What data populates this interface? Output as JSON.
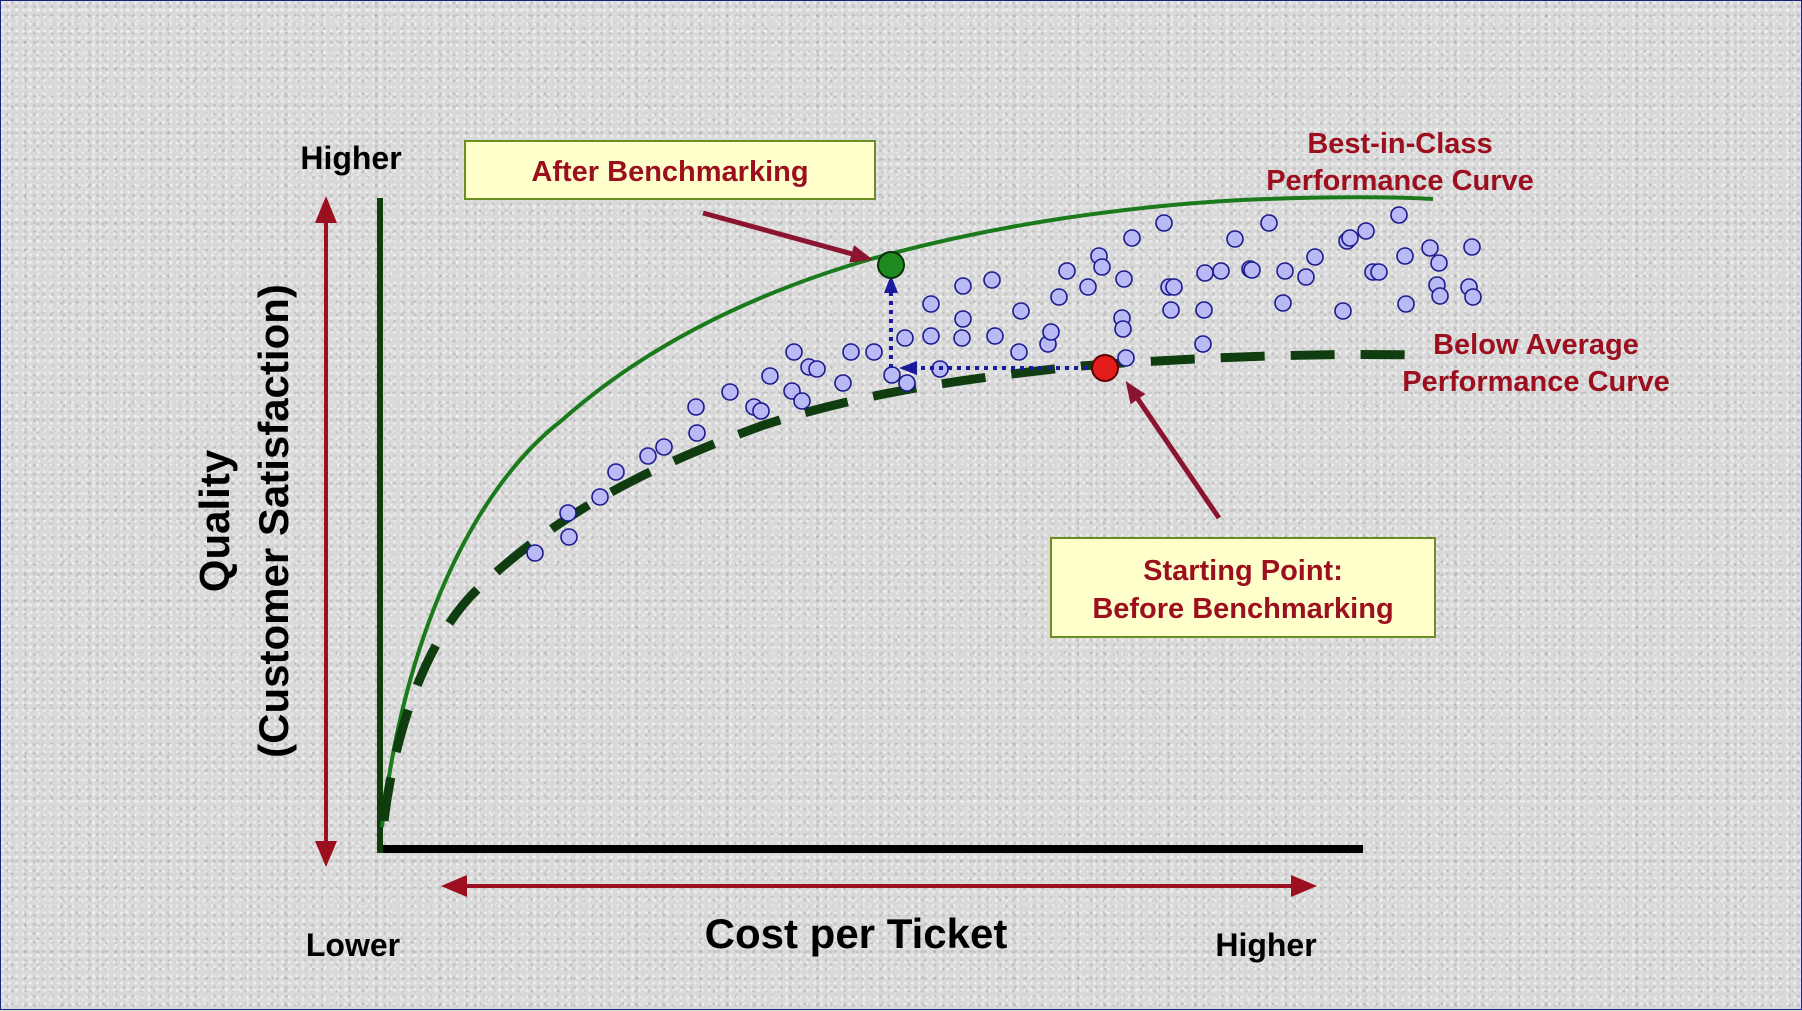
{
  "y_axis": {
    "title_line1": "Quality",
    "title_line2": "(Customer Satisfaction)",
    "high_label": "Higher"
  },
  "x_axis": {
    "title": "Cost per Ticket",
    "low_label": "Lower",
    "high_label": "Higher"
  },
  "curves": {
    "best": {
      "line1": "Best-in-Class",
      "line2": "Performance Curve",
      "color": "#1b7a1b"
    },
    "below": {
      "line1": "Below Average",
      "line2": "Performance Curve",
      "color": "#0f3d0f"
    }
  },
  "callouts": {
    "after": {
      "text": "After Benchmarking"
    },
    "start": {
      "line1": "Starting Point:",
      "line2": "Before Benchmarking"
    }
  },
  "colors": {
    "label_red": "#9b0f1e",
    "box_fill": "#ffffcc",
    "box_border": "#6b8e23",
    "dot_fill": "#b9b9f5",
    "dot_stroke": "#1a1a8c",
    "after_dot": "#1f8a1f",
    "start_dot": "#e21b1b",
    "path_arrow": "#1a1a9c",
    "axis_arrow": "#9b0f1e"
  }
}
